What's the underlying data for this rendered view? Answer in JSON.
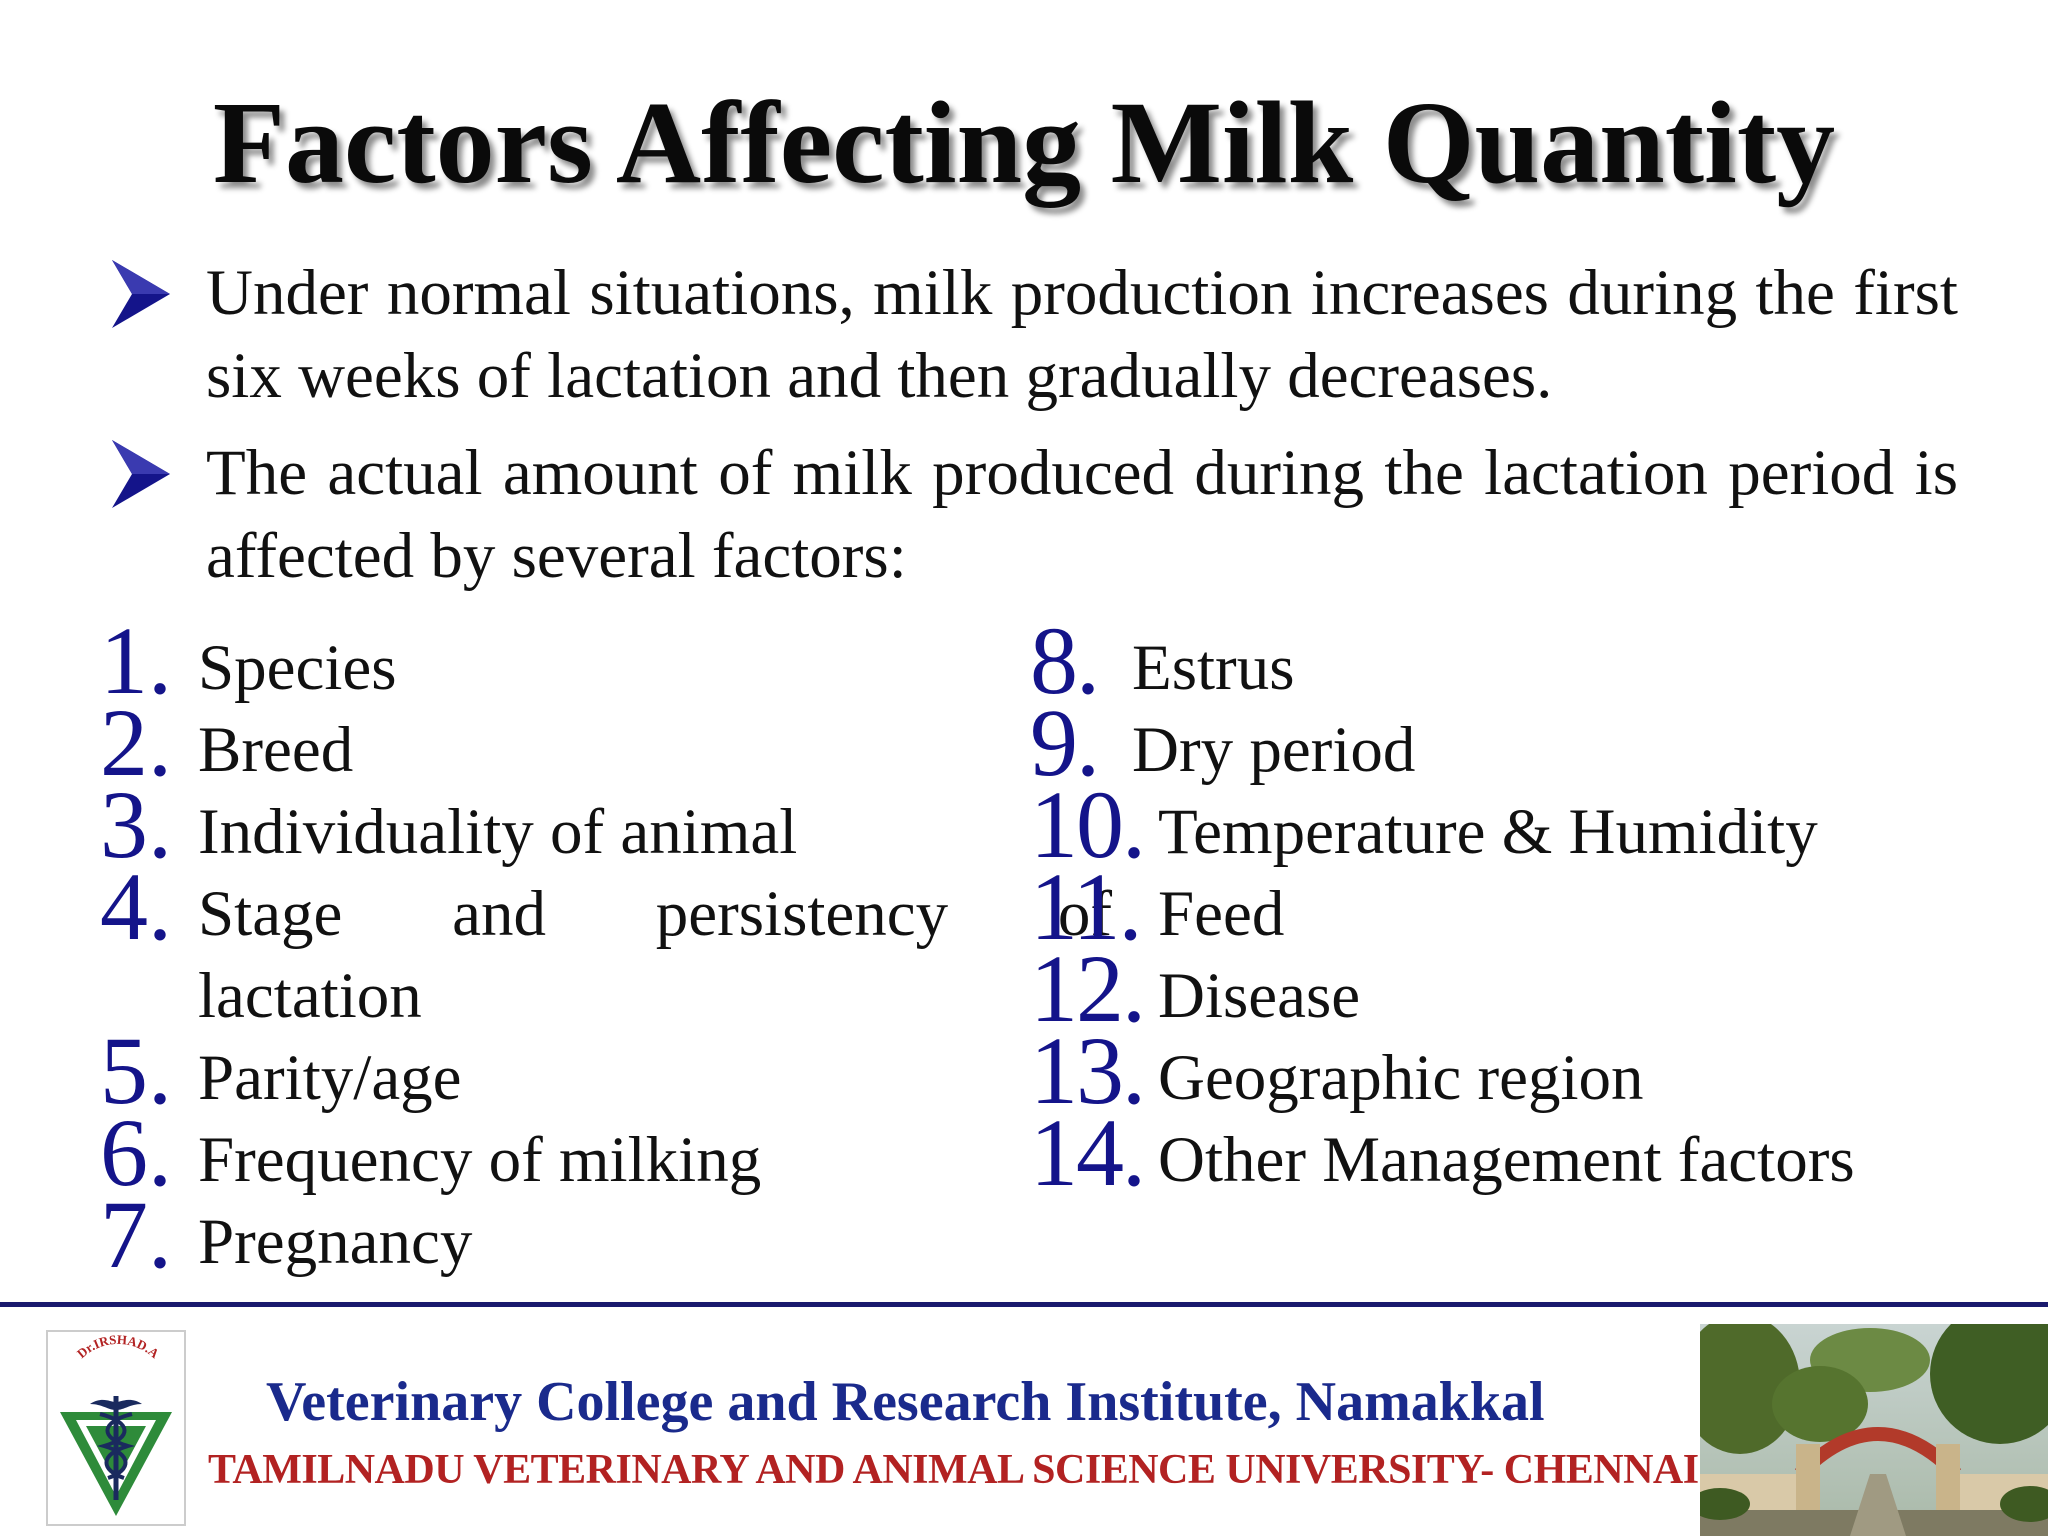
{
  "slide": {
    "title": "Factors Affecting Milk Quantity",
    "bullets": [
      "Under normal situations, milk production increases during the first six weeks of lactation and then gradually decreases.",
      "The actual amount of milk produced during the lactation period is affected by several factors:"
    ],
    "factors_left": [
      {
        "num": "1.",
        "label": "Species"
      },
      {
        "num": "2.",
        "label": "Breed"
      },
      {
        "num": "3.",
        "label": "Individuality of animal"
      },
      {
        "num": "4.",
        "label_words": [
          "Stage",
          "and",
          "persistency",
          "of"
        ],
        "label_cont": "lactation"
      },
      {
        "num": "5.",
        "label": "Parity/age"
      },
      {
        "num": "6.",
        "label": "Frequency of milking"
      },
      {
        "num": "7.",
        "label": "Pregnancy"
      }
    ],
    "factors_right": [
      {
        "num": "8.",
        "label": "Estrus"
      },
      {
        "num": "9.",
        "label": "Dry period"
      },
      {
        "num": "10.",
        "label": "Temperature & Humidity"
      },
      {
        "num": "11.",
        "label": "Feed"
      },
      {
        "num": "12.",
        "label": "Disease"
      },
      {
        "num": "13.",
        "label": "Geographic region"
      },
      {
        "num": "14.",
        "label": "Other Management factors"
      }
    ]
  },
  "footer": {
    "institute": "Veterinary College and Research Institute, Namakkal",
    "university": "TAMILNADU VETERINARY AND ANIMAL SCIENCE UNIVERSITY- CHENNAI",
    "logo_text": "Dr.IRSHAD.A"
  },
  "colors": {
    "number_blue": "#14148a",
    "institute_blue": "#1a2a8c",
    "university_red": "#b22222",
    "footer_line": "#1a1a6e",
    "logo_green": "#2e8b3a"
  },
  "icons": {
    "bullet": "arrowhead-bullet-icon",
    "logo": "veterinary-caduceus-logo",
    "photo": "campus-gate-photo"
  }
}
